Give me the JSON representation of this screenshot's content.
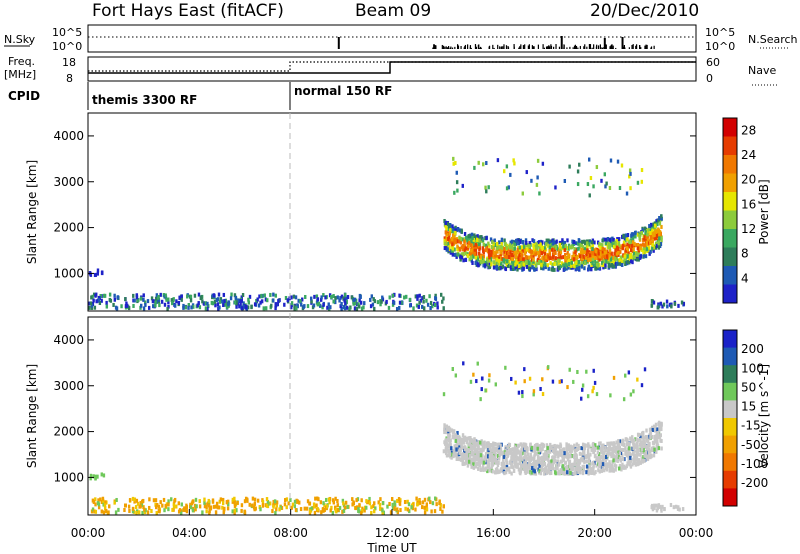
{
  "header": {
    "station": "Fort Hays East (fitACF)",
    "beam": "Beam 09",
    "date": "20/Dec/2010"
  },
  "noise_panel": {
    "left_label": "N.Sky",
    "right_label": "N.Search",
    "left_ticks": [
      "10^5",
      "10^0"
    ],
    "right_ticks": [
      "10^5",
      "10^0"
    ]
  },
  "freq_panel": {
    "left_label_1": "Freq.",
    "left_label_2": "[MHz]",
    "right_label": "Nave",
    "left_ticks": [
      "18",
      "8"
    ],
    "right_ticks": [
      "60",
      "0"
    ]
  },
  "cpid_panel": {
    "label": "CPID",
    "modes": [
      "themis 3300 RF",
      "normal 150 RF"
    ]
  },
  "time_axis": {
    "label": "Time UT",
    "ticks": [
      "00:00",
      "04:00",
      "08:00",
      "12:00",
      "16:00",
      "20:00",
      "00:00"
    ]
  },
  "chart_data": [
    {
      "type": "heatmap",
      "name": "power",
      "ylabel": "Slant Range [km]",
      "yticks": [
        "1000",
        "2000",
        "3000",
        "4000"
      ],
      "ylim": [
        180,
        4500
      ],
      "xlim_hours": [
        0,
        24
      ],
      "colorbar_label": "Power [dB]",
      "colorbar_ticks": [
        "4",
        "8",
        "12",
        "16",
        "20",
        "24",
        "28"
      ],
      "colors": [
        "#1e22c8",
        "#1e5ab4",
        "#2e7d5a",
        "#3aa860",
        "#8ccb3c",
        "#e6e600",
        "#f0a000",
        "#f07800",
        "#e63c00",
        "#d20000"
      ]
    },
    {
      "type": "heatmap",
      "name": "velocity",
      "ylabel": "Slant Range [km]",
      "yticks": [
        "1000",
        "2000",
        "3000",
        "4000"
      ],
      "ylim": [
        180,
        4500
      ],
      "xlim_hours": [
        0,
        24
      ],
      "colorbar_label": "Velocity [m s^-1]",
      "colorbar_ticks": [
        "200",
        "100",
        "50",
        "15",
        "-15",
        "-50",
        "-100",
        "-200"
      ],
      "colors": [
        "#1a22c8",
        "#1e5ab4",
        "#2e7d5a",
        "#6fc85a",
        "#c8c8c8",
        "#f0c800",
        "#f0a000",
        "#f07800",
        "#e63c00",
        "#d20000"
      ]
    }
  ]
}
